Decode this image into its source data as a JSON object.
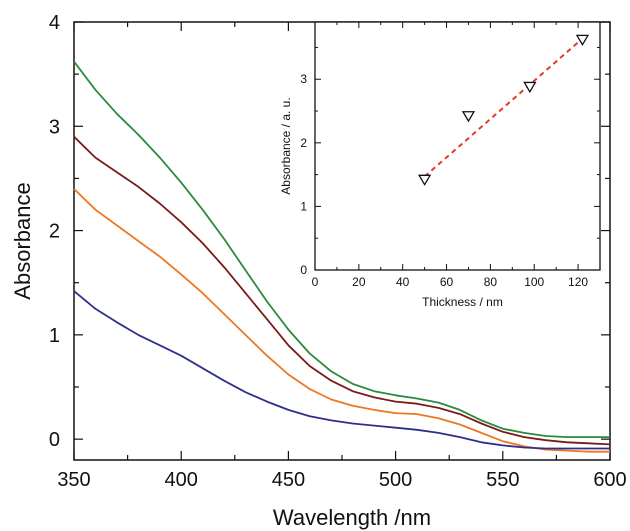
{
  "chart_data": [
    {
      "type": "line",
      "title": "",
      "xlabel": "Wavelength /nm",
      "ylabel": "Absorbance",
      "xlim": [
        350,
        600
      ],
      "ylim": [
        -0.2,
        4
      ],
      "xticks": [
        350,
        400,
        450,
        500,
        550,
        600
      ],
      "yticks": [
        0,
        1,
        2,
        3,
        4
      ],
      "grid": false,
      "series": [
        {
          "color": "#2a8a3e",
          "x": [
            350,
            360,
            370,
            380,
            390,
            400,
            410,
            420,
            430,
            440,
            450,
            460,
            470,
            480,
            490,
            500,
            510,
            520,
            530,
            540,
            550,
            560,
            570,
            580,
            590,
            600
          ],
          "y": [
            3.62,
            3.35,
            3.12,
            2.92,
            2.7,
            2.46,
            2.2,
            1.92,
            1.62,
            1.32,
            1.05,
            0.82,
            0.65,
            0.53,
            0.46,
            0.42,
            0.39,
            0.35,
            0.28,
            0.18,
            0.1,
            0.06,
            0.03,
            0.02,
            0.02,
            0.02
          ]
        },
        {
          "color": "#7a1a1a",
          "x": [
            350,
            360,
            370,
            380,
            390,
            400,
            410,
            420,
            430,
            440,
            450,
            460,
            470,
            480,
            490,
            500,
            510,
            520,
            530,
            540,
            550,
            560,
            570,
            580,
            590,
            600
          ],
          "y": [
            2.9,
            2.7,
            2.56,
            2.42,
            2.26,
            2.08,
            1.88,
            1.65,
            1.4,
            1.15,
            0.9,
            0.7,
            0.56,
            0.46,
            0.4,
            0.36,
            0.34,
            0.3,
            0.24,
            0.15,
            0.07,
            0.02,
            -0.01,
            -0.03,
            -0.04,
            -0.05
          ]
        },
        {
          "color": "#ee7722",
          "x": [
            350,
            360,
            370,
            380,
            390,
            400,
            410,
            420,
            430,
            440,
            450,
            460,
            470,
            480,
            490,
            500,
            510,
            520,
            530,
            540,
            550,
            560,
            570,
            580,
            590,
            600
          ],
          "y": [
            2.4,
            2.2,
            2.05,
            1.9,
            1.75,
            1.58,
            1.4,
            1.2,
            1.0,
            0.8,
            0.62,
            0.48,
            0.38,
            0.32,
            0.28,
            0.25,
            0.24,
            0.2,
            0.14,
            0.06,
            -0.02,
            -0.07,
            -0.1,
            -0.11,
            -0.12,
            -0.12
          ]
        },
        {
          "color": "#2e2f8a",
          "x": [
            350,
            360,
            370,
            380,
            390,
            400,
            410,
            420,
            430,
            440,
            450,
            460,
            470,
            480,
            490,
            500,
            510,
            520,
            530,
            540,
            550,
            560,
            570,
            580,
            590,
            600
          ],
          "y": [
            1.42,
            1.25,
            1.12,
            1.0,
            0.9,
            0.8,
            0.68,
            0.56,
            0.45,
            0.36,
            0.28,
            0.22,
            0.18,
            0.15,
            0.13,
            0.11,
            0.09,
            0.06,
            0.02,
            -0.03,
            -0.06,
            -0.08,
            -0.09,
            -0.09,
            -0.09,
            -0.09
          ]
        }
      ]
    },
    {
      "type": "scatter",
      "title": "",
      "xlabel": "Thickness / nm",
      "ylabel": "Absorbance / a. u.",
      "xlim": [
        0,
        130
      ],
      "ylim": [
        0,
        3.9
      ],
      "xticks": [
        0,
        20,
        40,
        60,
        80,
        100,
        120
      ],
      "yticks": [
        0,
        1,
        2,
        3
      ],
      "grid": false,
      "marker": "triangle-down",
      "points": {
        "x": [
          50,
          70,
          98,
          122
        ],
        "y": [
          1.42,
          2.42,
          2.88,
          3.62
        ]
      },
      "fit_line": {
        "color": "#e03a2a",
        "style": "dashed",
        "x": [
          50,
          122
        ],
        "y": [
          1.47,
          3.64
        ]
      }
    }
  ]
}
